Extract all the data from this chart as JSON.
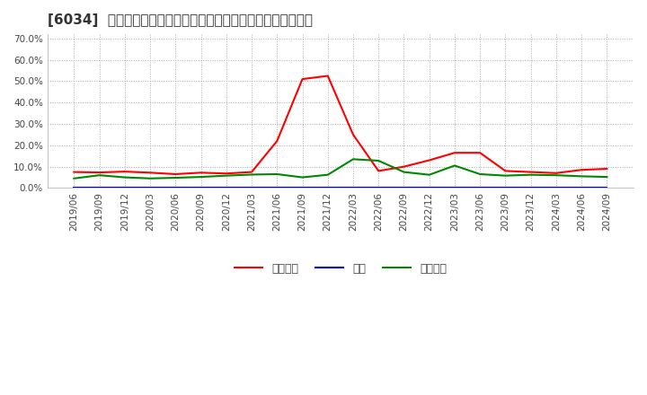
{
  "title": "[6034]  売上債権、在庫、買入債務の総資産に対する比率の推移",
  "ylim": [
    0.0,
    0.72
  ],
  "yticks": [
    0.0,
    0.1,
    0.2,
    0.3,
    0.4,
    0.5,
    0.6,
    0.7
  ],
  "ytick_labels": [
    "0.0%",
    "10.0%",
    "20.0%",
    "30.0%",
    "40.0%",
    "50.0%",
    "60.0%",
    "70.0%"
  ],
  "fig_bg_color": "#ffffff",
  "plot_bg_color": "#ffffff",
  "grid_color": "#aaaaaa",
  "dates": [
    "2019/06",
    "2019/09",
    "2019/12",
    "2020/03",
    "2020/06",
    "2020/09",
    "2020/12",
    "2021/03",
    "2021/06",
    "2021/09",
    "2021/12",
    "2022/03",
    "2022/06",
    "2022/09",
    "2022/12",
    "2023/03",
    "2023/06",
    "2023/09",
    "2023/12",
    "2024/03",
    "2024/06",
    "2024/09"
  ],
  "receivables": [
    0.075,
    0.073,
    0.077,
    0.072,
    0.065,
    0.072,
    0.068,
    0.075,
    0.22,
    0.51,
    0.525,
    0.25,
    0.08,
    0.1,
    0.13,
    0.165,
    0.165,
    0.08,
    0.075,
    0.07,
    0.085,
    0.09
  ],
  "inventory": [
    0.002,
    0.002,
    0.002,
    0.002,
    0.002,
    0.002,
    0.002,
    0.002,
    0.002,
    0.002,
    0.002,
    0.002,
    0.002,
    0.002,
    0.002,
    0.002,
    0.002,
    0.002,
    0.002,
    0.002,
    0.002,
    0.002
  ],
  "payables": [
    0.045,
    0.06,
    0.05,
    0.045,
    0.048,
    0.052,
    0.058,
    0.063,
    0.065,
    0.05,
    0.062,
    0.135,
    0.128,
    0.075,
    0.062,
    0.105,
    0.065,
    0.058,
    0.062,
    0.06,
    0.055,
    0.052
  ],
  "line_colors": [
    "#ff0000",
    "#0000cc",
    "#008800"
  ],
  "legend_labels": [
    "売上債権",
    "在庫",
    "買入債務"
  ],
  "title_fontsize": 11,
  "tick_fontsize": 7.5,
  "legend_fontsize": 9
}
